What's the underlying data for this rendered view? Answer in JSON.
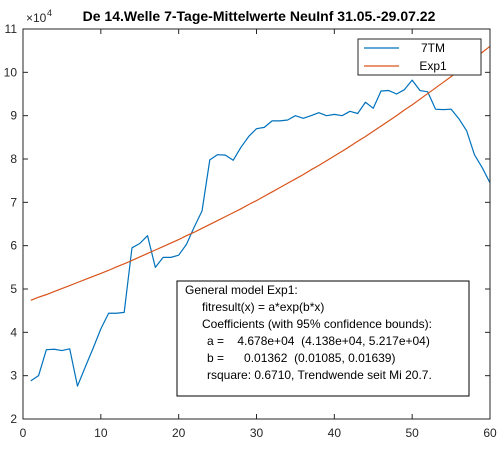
{
  "chart_data": {
    "type": "line",
    "title": "De 14.Welle 7-Tage-Mittelwerte NeuInf 31.05.-29.07.22",
    "xlabel": "",
    "ylabel": "",
    "xlim": [
      0,
      60
    ],
    "ylim": [
      2,
      11
    ],
    "y_exponent_label": "×10",
    "y_exponent_power": "4",
    "xticks": [
      0,
      10,
      20,
      30,
      40,
      50,
      60
    ],
    "yticks": [
      2,
      3,
      4,
      5,
      6,
      7,
      8,
      9,
      10,
      11
    ],
    "grid": false,
    "legend_position": "top-right",
    "series": [
      {
        "name": "7TM",
        "color": "#0072BD",
        "x": [
          1,
          2,
          3,
          4,
          5,
          6,
          7,
          8,
          9,
          10,
          11,
          12,
          13,
          14,
          15,
          16,
          17,
          18,
          19,
          20,
          21,
          22,
          23,
          24,
          25,
          26,
          27,
          28,
          29,
          30,
          31,
          32,
          33,
          34,
          35,
          36,
          37,
          38,
          39,
          40,
          41,
          42,
          43,
          44,
          45,
          46,
          47,
          48,
          49,
          50,
          51,
          52,
          53,
          54,
          55,
          56,
          57,
          58,
          59,
          60
        ],
        "y": [
          2.88,
          3.0,
          3.6,
          3.61,
          3.58,
          3.62,
          2.76,
          3.2,
          3.63,
          4.08,
          4.44,
          4.44,
          4.46,
          5.95,
          6.05,
          6.23,
          5.5,
          5.73,
          5.73,
          5.78,
          6.03,
          6.43,
          6.8,
          7.98,
          8.1,
          8.09,
          7.97,
          8.27,
          8.52,
          8.7,
          8.73,
          8.88,
          8.88,
          8.9,
          9.0,
          8.94,
          9.0,
          9.07,
          9.0,
          9.03,
          9.0,
          9.1,
          9.05,
          9.31,
          9.17,
          9.57,
          9.58,
          9.5,
          9.6,
          9.82,
          9.58,
          9.55,
          9.15,
          9.14,
          9.15,
          8.93,
          8.65,
          8.1,
          7.8,
          7.45
        ]
      },
      {
        "name": "Exp1",
        "color": "#D95319",
        "x": [
          1,
          2,
          3,
          4,
          5,
          6,
          7,
          8,
          9,
          10,
          11,
          12,
          13,
          14,
          15,
          16,
          17,
          18,
          19,
          20,
          21,
          22,
          23,
          24,
          25,
          26,
          27,
          28,
          29,
          30,
          31,
          32,
          33,
          34,
          35,
          36,
          37,
          38,
          39,
          40,
          41,
          42,
          43,
          44,
          45,
          46,
          47,
          48,
          49,
          50,
          51,
          52,
          53,
          54,
          55,
          56,
          57,
          58,
          59,
          60
        ],
        "y": [
          4.74,
          4.81,
          4.87,
          4.94,
          5.01,
          5.08,
          5.15,
          5.22,
          5.29,
          5.36,
          5.43,
          5.51,
          5.58,
          5.66,
          5.74,
          5.82,
          5.9,
          5.98,
          6.06,
          6.14,
          6.23,
          6.31,
          6.4,
          6.49,
          6.58,
          6.67,
          6.76,
          6.85,
          6.95,
          7.04,
          7.14,
          7.24,
          7.34,
          7.44,
          7.54,
          7.64,
          7.75,
          7.85,
          7.96,
          8.07,
          8.18,
          8.29,
          8.41,
          8.52,
          8.64,
          8.76,
          8.88,
          9.0,
          9.13,
          9.25,
          9.38,
          9.51,
          9.64,
          9.77,
          9.9,
          10.04,
          10.18,
          10.32,
          10.46,
          10.6
        ]
      }
    ],
    "annotation_lines": [
      "General model Exp1:",
      "fitresult(x) = a*exp(b*x)",
      "Coefficients (with 95% confidence bounds):",
      "a =    4.678e+04  (4.138e+04, 5.217e+04)",
      "b =      0.01362  (0.01085, 0.01639)",
      "rsquare: 0.6710, Trendwende seit Mi 20.7."
    ]
  }
}
